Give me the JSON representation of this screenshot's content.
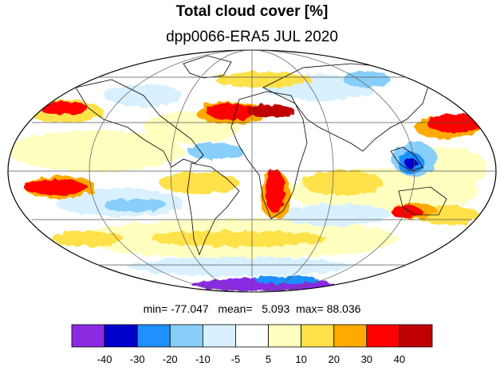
{
  "title": "Total cloud cover [%]",
  "subtitle": "dpp0066-ERA5 JUL 2020",
  "stats": {
    "min_label": "min=",
    "min": "-77.047",
    "mean_label": "mean=",
    "mean": "5.093",
    "max_label": "max=",
    "max": "88.036"
  },
  "colorbar": {
    "colors": [
      "#8a2be2",
      "#0000cd",
      "#1e90ff",
      "#87cefa",
      "#d8f0ff",
      "#ffffff",
      "#ffffc0",
      "#ffe14a",
      "#ffaa00",
      "#ff0000",
      "#c00000"
    ],
    "labels": [
      "-40",
      "-30",
      "-20",
      "-10",
      "-5",
      "5",
      "10",
      "20",
      "30",
      "40"
    ]
  },
  "map": {
    "projection": "Mollweide",
    "grid_color": "#555555",
    "coast_color": "#000000"
  }
}
